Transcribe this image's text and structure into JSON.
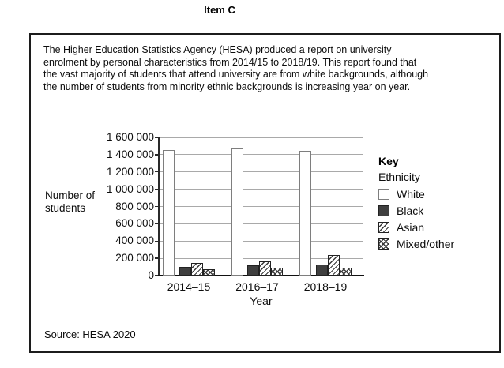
{
  "page_title": "Item C",
  "panel": {
    "paragraph": "The Higher Education Statistics Agency (HESA) produced a report on university\nenrolment by personal characteristics from 2014/15 to 2018/19.  This report found that\nthe vast majority of students that attend university are from white backgrounds, although\nthe number of students from minority ethnic backgrounds is increasing year on year.",
    "source": "Source: HESA 2020"
  },
  "chart_data": {
    "type": "bar",
    "title": "",
    "categories": [
      "2014–15",
      "2016–17",
      "2018–19"
    ],
    "series": [
      {
        "name": "White",
        "pattern": "plain",
        "values": [
          1450000,
          1470000,
          1440000
        ]
      },
      {
        "name": "Black",
        "pattern": "solid",
        "values": [
          100000,
          120000,
          130000
        ]
      },
      {
        "name": "Asian",
        "pattern": "diagonal",
        "values": [
          145000,
          165000,
          240000
        ]
      },
      {
        "name": "Mixed/other",
        "pattern": "crosshatch",
        "values": [
          75000,
          90000,
          95000
        ]
      }
    ],
    "xlabel": "Year",
    "ylabel": "Number of\nstudents",
    "ylim": [
      0,
      1600000
    ],
    "ytick_step": 200000,
    "ytick_labels": [
      "0",
      "200 000",
      "400 000",
      "600 000",
      "800 000",
      "1 000 000",
      "1 200 000",
      "1 400 000",
      "1 600 000"
    ],
    "grid": true,
    "legend": {
      "title": "Key",
      "subtitle": "Ethnicity",
      "position": "right"
    },
    "colors": {
      "bar_dark": "#3f3f3f",
      "gridline": "#a9a9a9",
      "axis": "#2a2a2a"
    }
  }
}
